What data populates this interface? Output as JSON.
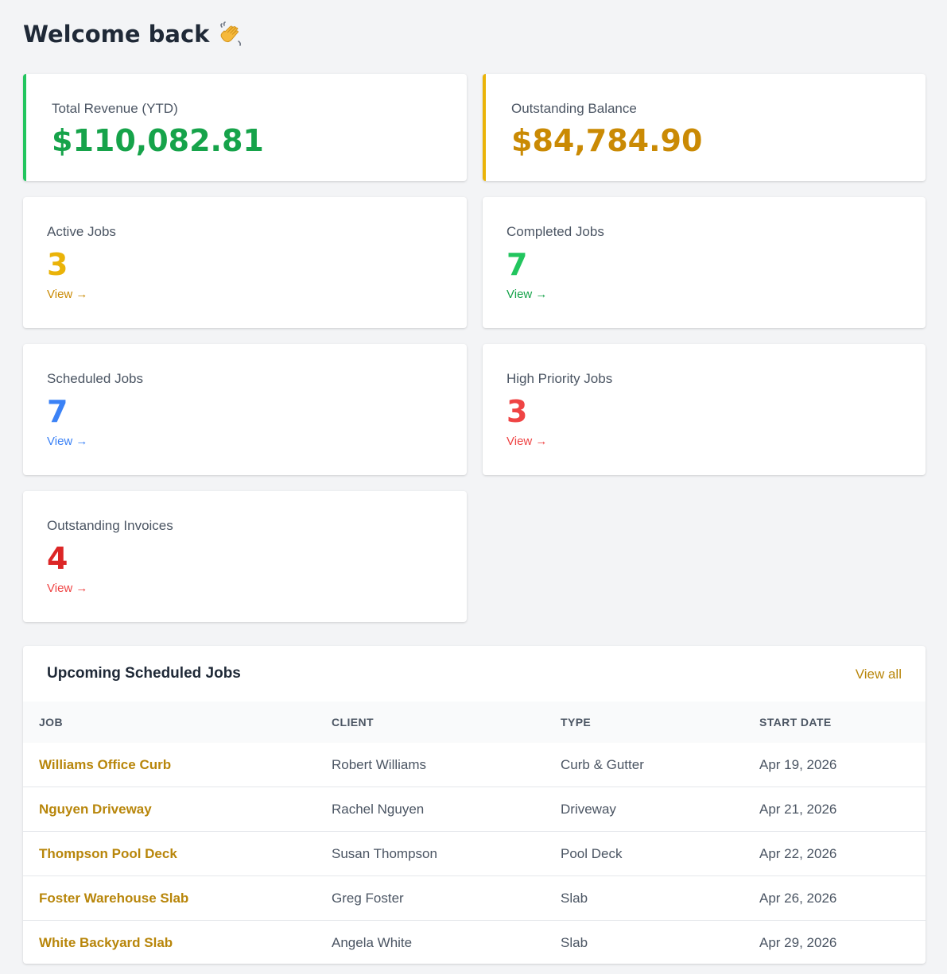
{
  "header": {
    "title": "Welcome back",
    "icon": "waving-hand-icon"
  },
  "finance": {
    "revenue": {
      "label": "Total Revenue (YTD)",
      "value": "$110,082.81",
      "color": "#16a34a",
      "accent": "#22c55e"
    },
    "balance": {
      "label": "Outstanding Balance",
      "value": "$84,784.90",
      "color": "#ca8a04",
      "accent": "#eab308"
    }
  },
  "stats": {
    "active": {
      "label": "Active Jobs",
      "value": "3",
      "link": "View →",
      "color": "#eab308"
    },
    "completed": {
      "label": "Completed Jobs",
      "value": "7",
      "link": "View →",
      "color": "#22c55e"
    },
    "scheduled": {
      "label": "Scheduled Jobs",
      "value": "7",
      "link": "View →",
      "color": "#3b82f6"
    },
    "priority": {
      "label": "High Priority Jobs",
      "value": "3",
      "link": "View →",
      "color": "#ef4444"
    },
    "invoices": {
      "label": "Outstanding Invoices",
      "value": "4",
      "link": "View →",
      "color": "#dc2626"
    }
  },
  "upcoming": {
    "title": "Upcoming Scheduled Jobs",
    "view_all": "View all",
    "columns": [
      "JOB",
      "CLIENT",
      "TYPE",
      "START DATE"
    ],
    "rows": [
      {
        "job": "Williams Office Curb",
        "client": "Robert Williams",
        "type": "Curb & Gutter",
        "start": "Apr 19, 2026"
      },
      {
        "job": "Nguyen Driveway",
        "client": "Rachel Nguyen",
        "type": "Driveway",
        "start": "Apr 21, 2026"
      },
      {
        "job": "Thompson Pool Deck",
        "client": "Susan Thompson",
        "type": "Pool Deck",
        "start": "Apr 22, 2026"
      },
      {
        "job": "Foster Warehouse Slab",
        "client": "Greg Foster",
        "type": "Slab",
        "start": "Apr 26, 2026"
      },
      {
        "job": "White Backyard Slab",
        "client": "Angela White",
        "type": "Slab",
        "start": "Apr 29, 2026"
      }
    ]
  }
}
